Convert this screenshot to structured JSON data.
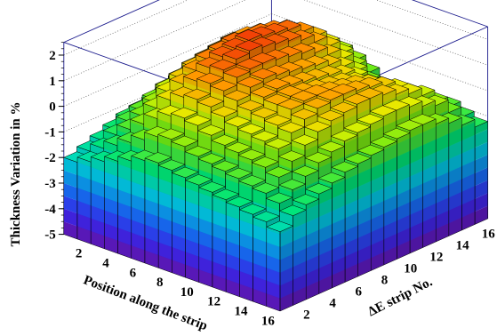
{
  "chart_data": {
    "type": "lego3d",
    "title": "",
    "zlabel": "Thickness Variation in %",
    "xlabel": "Position along the strip",
    "ylabel": "ΔE strip No.",
    "zlim": [
      -5,
      2.5
    ],
    "ztick_labels": [
      "-5",
      "-4",
      "-3",
      "-2",
      "-1",
      "0",
      "1",
      "2"
    ],
    "xtick_labels": [
      "2",
      "4",
      "6",
      "8",
      "10",
      "12",
      "14",
      "16"
    ],
    "ytick_labels": [
      "16",
      "14",
      "12",
      "10",
      "8",
      "6",
      "4",
      "2"
    ],
    "grid": true,
    "colormap": "rainbow (violet at -5 to red at +2.5)",
    "x": [
      1,
      2,
      3,
      4,
      5,
      6,
      7,
      8,
      9,
      10,
      11,
      12,
      13,
      14,
      15,
      16
    ],
    "y": [
      1,
      2,
      3,
      4,
      5,
      6,
      7,
      8,
      9,
      10,
      11,
      12,
      13,
      14,
      15,
      16
    ],
    "z": [
      [
        -1.3,
        -1.0,
        -0.6,
        -0.3,
        -0.2,
        -0.1,
        -0.3,
        -0.6,
        -1.0,
        -1.2,
        -1.3,
        -1.1,
        -0.9,
        -0.8,
        -1.0,
        -1.2
      ],
      [
        -1.1,
        -0.6,
        -0.2,
        0.1,
        0.3,
        0.4,
        0.2,
        -0.1,
        -0.5,
        -0.8,
        -0.9,
        -0.7,
        -0.5,
        -0.4,
        -0.6,
        -0.9
      ],
      [
        -0.9,
        -0.3,
        0.3,
        0.6,
        0.8,
        0.9,
        0.7,
        0.4,
        0.1,
        -0.2,
        -0.3,
        -0.2,
        0.0,
        0.1,
        -0.1,
        -0.6
      ],
      [
        -0.7,
        -0.1,
        0.5,
        0.9,
        1.2,
        1.3,
        1.1,
        0.8,
        0.5,
        0.3,
        0.2,
        0.3,
        0.4,
        0.4,
        0.1,
        -0.4
      ],
      [
        -0.6,
        0.1,
        0.7,
        1.1,
        1.4,
        1.6,
        1.4,
        1.1,
        0.8,
        0.6,
        0.5,
        0.6,
        0.7,
        0.6,
        0.3,
        -0.2
      ],
      [
        -0.6,
        0.1,
        0.8,
        1.2,
        1.5,
        1.7,
        1.6,
        1.3,
        1.0,
        0.8,
        0.7,
        0.8,
        0.9,
        0.8,
        0.4,
        -0.2
      ],
      [
        -0.7,
        0.0,
        0.7,
        1.2,
        1.5,
        1.8,
        1.7,
        1.4,
        1.1,
        0.9,
        0.8,
        0.9,
        1.0,
        0.9,
        0.4,
        -0.3
      ],
      [
        -0.8,
        -0.1,
        0.6,
        1.1,
        1.6,
        1.9,
        1.8,
        1.5,
        1.2,
        1.0,
        0.9,
        1.0,
        1.1,
        0.9,
        0.3,
        -0.4
      ],
      [
        -0.9,
        -0.2,
        0.5,
        1.0,
        1.5,
        1.8,
        1.9,
        1.6,
        1.3,
        1.1,
        1.0,
        1.1,
        1.1,
        0.8,
        0.2,
        -0.5
      ],
      [
        -1.0,
        -0.3,
        0.3,
        0.9,
        1.4,
        1.7,
        1.8,
        1.6,
        1.4,
        1.2,
        1.1,
        1.1,
        1.0,
        0.7,
        0.1,
        -0.6
      ],
      [
        -1.1,
        -0.5,
        0.1,
        0.7,
        1.2,
        1.5,
        1.6,
        1.5,
        1.3,
        1.1,
        1.0,
        1.0,
        0.8,
        0.5,
        -0.1,
        -0.7
      ],
      [
        -1.2,
        -0.7,
        -0.2,
        0.4,
        0.9,
        1.2,
        1.3,
        1.2,
        1.0,
        0.8,
        0.7,
        0.6,
        0.5,
        0.2,
        -0.3,
        -0.9
      ],
      [
        -1.4,
        -0.9,
        -0.5,
        0.0,
        0.5,
        0.8,
        0.9,
        0.8,
        0.6,
        0.4,
        0.3,
        0.2,
        0.1,
        -0.2,
        -0.6,
        -1.1
      ],
      [
        -1.6,
        -1.2,
        -0.8,
        -0.4,
        0.0,
        0.3,
        0.4,
        0.3,
        0.1,
        -0.1,
        -0.2,
        -0.3,
        -0.4,
        -0.6,
        -0.9,
        -1.3
      ],
      [
        -1.8,
        -1.5,
        -1.2,
        -0.9,
        -0.6,
        -0.3,
        -0.2,
        -0.3,
        -0.5,
        -0.6,
        -0.7,
        -0.8,
        -0.9,
        -1.0,
        -1.2,
        -1.5
      ],
      [
        -2.0,
        -1.8,
        -1.6,
        -1.4,
        -1.2,
        -1.0,
        -0.9,
        -1.0,
        -1.1,
        -1.2,
        -1.3,
        -1.4,
        -1.5,
        -1.6,
        -1.7,
        -1.9
      ]
    ]
  }
}
